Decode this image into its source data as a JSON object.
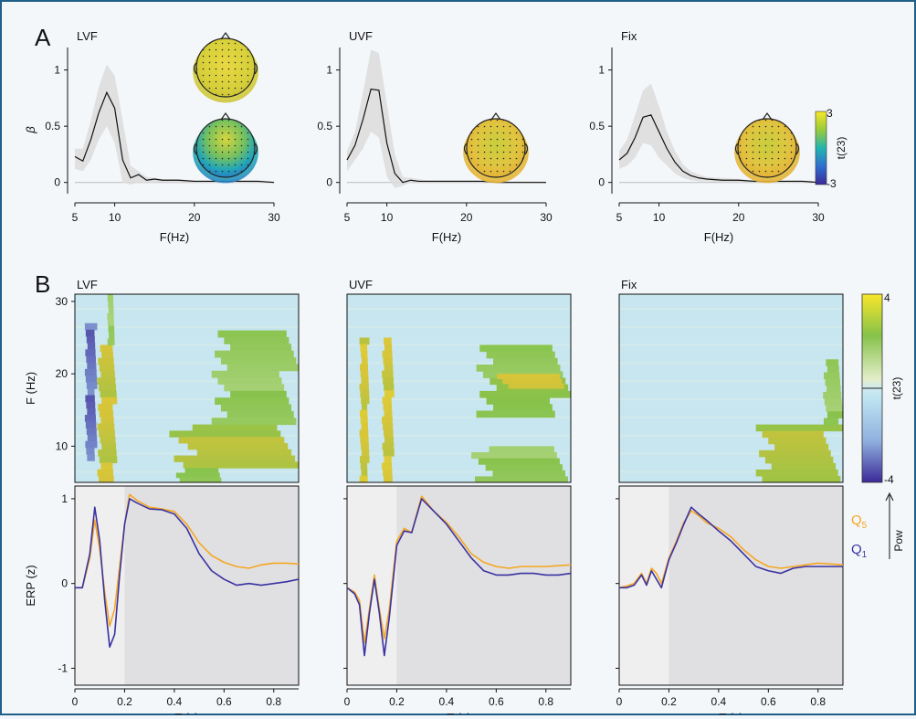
{
  "panel_labels": [
    "A",
    "B"
  ],
  "colors": {
    "q5": "#f5a623",
    "q1": "#3a32a0",
    "shade_line": "#dcdcdc",
    "bg_light": "#efeff0",
    "bg_dark": "#e0e0e2",
    "heat_bg": "#c8e6ef"
  },
  "colorbar_a": {
    "max": "3",
    "min": "-3",
    "label": "t(23)"
  },
  "colorbar_b": {
    "max": "4",
    "min": "-4",
    "label": "t(23)"
  },
  "legend_b": {
    "q5": "Q",
    "q5_sub": "5",
    "q1": "Q",
    "q1_sub": "1",
    "pow": "Pow"
  },
  "chart_data": [
    {
      "type": "line",
      "title": "LVF",
      "xlabel": "F(Hz)",
      "ylabel": "β",
      "xlim": [
        5,
        30
      ],
      "ylim": [
        -0.1,
        1.2
      ],
      "xticks": [
        "5",
        "10",
        "20",
        "30"
      ],
      "yticks": [
        "0",
        "0.5",
        "1"
      ],
      "x": [
        5,
        6,
        7,
        8,
        9,
        10,
        11,
        12,
        13,
        14,
        15,
        16,
        18,
        20,
        22,
        24,
        26,
        28,
        30
      ],
      "series": [
        {
          "values": [
            0.23,
            0.19,
            0.38,
            0.62,
            0.8,
            0.66,
            0.2,
            0.04,
            0.07,
            0.02,
            0.03,
            0.02,
            0.02,
            0.01,
            0.01,
            0.01,
            0.01,
            0.01,
            0.0
          ]
        }
      ],
      "band_upper": [
        0.3,
        0.3,
        0.55,
        0.85,
        1.05,
        0.95,
        0.55,
        0.15,
        0.1,
        0.05,
        0.04,
        0.03,
        0.03,
        0.02,
        0.02,
        0.02,
        0.02,
        0.02,
        0.01
      ],
      "band_lower": [
        0.12,
        0.1,
        0.2,
        0.38,
        0.5,
        0.35,
        0.0,
        -0.02,
        0.0,
        -0.01,
        0.0,
        0.0,
        0.0,
        0.0,
        0.0,
        0.0,
        0.0,
        0.0,
        -0.01
      ]
    },
    {
      "type": "line",
      "title": "UVF",
      "xlabel": "F(Hz)",
      "ylabel": "",
      "xlim": [
        5,
        30
      ],
      "ylim": [
        -0.1,
        1.2
      ],
      "xticks": [
        "5",
        "10",
        "20",
        "30"
      ],
      "yticks": [
        "0",
        "0.5",
        "1"
      ],
      "x": [
        5,
        6,
        7,
        8,
        9,
        10,
        11,
        12,
        13,
        14,
        15,
        16,
        18,
        20,
        22,
        24,
        26,
        28,
        30
      ],
      "series": [
        {
          "values": [
            0.2,
            0.33,
            0.56,
            0.83,
            0.82,
            0.35,
            0.08,
            0.0,
            0.02,
            0.01,
            0.01,
            0.01,
            0.01,
            0.01,
            0.01,
            0.0,
            0.0,
            0.0,
            0.0
          ]
        }
      ],
      "band_upper": [
        0.28,
        0.45,
        0.8,
        1.18,
        1.15,
        0.7,
        0.25,
        0.05,
        0.04,
        0.03,
        0.02,
        0.02,
        0.02,
        0.02,
        0.02,
        0.01,
        0.01,
        0.01,
        0.01
      ],
      "band_lower": [
        0.1,
        0.2,
        0.3,
        0.45,
        0.4,
        0.05,
        -0.05,
        -0.03,
        0.0,
        0.0,
        0.0,
        0.0,
        0.0,
        0.0,
        0.0,
        0.0,
        0.0,
        0.0,
        -0.01
      ]
    },
    {
      "type": "line",
      "title": "Fix",
      "xlabel": "F(Hz)",
      "ylabel": "",
      "xlim": [
        5,
        30
      ],
      "ylim": [
        -0.1,
        1.2
      ],
      "xticks": [
        "5",
        "10",
        "20",
        "30"
      ],
      "yticks": [
        "0",
        "0.5",
        "1"
      ],
      "x": [
        5,
        6,
        7,
        8,
        9,
        10,
        11,
        12,
        13,
        14,
        15,
        16,
        18,
        20,
        22,
        24,
        26,
        28,
        30
      ],
      "series": [
        {
          "values": [
            0.2,
            0.26,
            0.4,
            0.58,
            0.6,
            0.45,
            0.3,
            0.18,
            0.1,
            0.06,
            0.04,
            0.03,
            0.02,
            0.02,
            0.01,
            0.01,
            0.01,
            0.01,
            0.0
          ]
        }
      ],
      "band_upper": [
        0.28,
        0.38,
        0.6,
        0.82,
        0.88,
        0.68,
        0.45,
        0.28,
        0.16,
        0.1,
        0.07,
        0.05,
        0.04,
        0.03,
        0.02,
        0.02,
        0.02,
        0.02,
        0.01
      ],
      "band_lower": [
        0.12,
        0.15,
        0.22,
        0.35,
        0.33,
        0.22,
        0.15,
        0.08,
        0.04,
        0.02,
        0.01,
        0.01,
        0.0,
        0.0,
        0.0,
        0.0,
        0.0,
        0.0,
        -0.01
      ]
    },
    {
      "type": "heatmap",
      "title": "LVF",
      "xlabel": "",
      "ylabel": "F (Hz)",
      "xlim": [
        0,
        0.9
      ],
      "ylim": [
        5,
        31
      ],
      "yticks": [
        "10",
        "20",
        "30"
      ],
      "clim": [
        -4,
        4
      ],
      "clusters": [
        {
          "t0": 0.04,
          "t1": 0.09,
          "f0": 8,
          "f1": 27,
          "t": -3.5
        },
        {
          "t0": 0.09,
          "t1": 0.17,
          "f0": 5,
          "f1": 24,
          "t": 2.8
        },
        {
          "t0": 0.13,
          "t1": 0.16,
          "f0": 24,
          "f1": 31,
          "t": 1.5
        },
        {
          "t0": 0.38,
          "t1": 0.9,
          "f0": 7,
          "f1": 13,
          "t": 2.4
        },
        {
          "t0": 0.55,
          "t1": 0.9,
          "f0": 13,
          "f1": 26,
          "t": 1.6
        },
        {
          "t0": 0.4,
          "t1": 0.6,
          "f0": 5,
          "f1": 7,
          "t": 1.8
        }
      ]
    },
    {
      "type": "heatmap",
      "title": "UVF",
      "xlabel": "",
      "ylabel": "",
      "xlim": [
        0,
        0.9
      ],
      "ylim": [
        5,
        31
      ],
      "clim": [
        -4,
        4
      ],
      "clusters": [
        {
          "t0": 0.05,
          "t1": 0.09,
          "f0": 5,
          "f1": 25,
          "t": 3.0
        },
        {
          "t0": 0.14,
          "t1": 0.19,
          "f0": 5,
          "f1": 25,
          "t": 3.0
        },
        {
          "t0": 0.52,
          "t1": 0.9,
          "f0": 14,
          "f1": 24,
          "t": 1.8
        },
        {
          "t0": 0.5,
          "t1": 0.9,
          "f0": 5,
          "f1": 10,
          "t": 1.6
        },
        {
          "t0": 0.58,
          "t1": 0.9,
          "f0": 18,
          "f1": 20,
          "t": 2.8
        }
      ]
    },
    {
      "type": "heatmap",
      "title": "Fix",
      "xlabel": "",
      "ylabel": "",
      "xlim": [
        0,
        0.9
      ],
      "ylim": [
        5,
        31
      ],
      "clim": [
        -4,
        4
      ],
      "clusters": [
        {
          "t0": 0.55,
          "t1": 0.9,
          "f0": 5,
          "f1": 13,
          "t": 2.4
        },
        {
          "t0": 0.82,
          "t1": 0.9,
          "f0": 13,
          "f1": 22,
          "t": 1.6
        }
      ]
    },
    {
      "type": "line",
      "title": "",
      "xlabel": "T (s)",
      "ylabel": "ERP (z)",
      "xlim": [
        0,
        0.9
      ],
      "ylim": [
        -1.2,
        1.15
      ],
      "xticks": [
        "0",
        "0.2",
        "0.4",
        "0.6",
        "0.8"
      ],
      "yticks": [
        "-1",
        "0",
        "1"
      ],
      "x": [
        0,
        0.03,
        0.06,
        0.08,
        0.1,
        0.12,
        0.14,
        0.16,
        0.18,
        0.2,
        0.22,
        0.25,
        0.3,
        0.35,
        0.4,
        0.45,
        0.5,
        0.55,
        0.6,
        0.65,
        0.7,
        0.75,
        0.8,
        0.85,
        0.9
      ],
      "series": [
        {
          "name": "Q5",
          "values": [
            -0.05,
            -0.05,
            0.3,
            0.75,
            0.4,
            -0.1,
            -0.5,
            -0.3,
            0.2,
            0.7,
            1.05,
            0.98,
            0.9,
            0.88,
            0.85,
            0.7,
            0.48,
            0.33,
            0.25,
            0.2,
            0.18,
            0.22,
            0.24,
            0.24,
            0.23
          ]
        },
        {
          "name": "Q1",
          "values": [
            -0.05,
            -0.05,
            0.35,
            0.9,
            0.5,
            -0.2,
            -0.75,
            -0.6,
            0.1,
            0.7,
            1.0,
            0.95,
            0.88,
            0.87,
            0.82,
            0.65,
            0.35,
            0.15,
            0.05,
            -0.02,
            0.0,
            -0.02,
            0.0,
            0.02,
            0.05
          ]
        }
      ]
    },
    {
      "type": "line",
      "title": "",
      "xlabel": "T (s)",
      "ylabel": "",
      "xlim": [
        0,
        0.9
      ],
      "ylim": [
        -1.2,
        1.15
      ],
      "xticks": [
        "0",
        "0.2",
        "0.4",
        "0.6",
        "0.8"
      ],
      "yticks": [
        "-1",
        "0",
        "1"
      ],
      "x": [
        0,
        0.03,
        0.05,
        0.07,
        0.09,
        0.11,
        0.13,
        0.15,
        0.17,
        0.2,
        0.23,
        0.26,
        0.3,
        0.35,
        0.4,
        0.45,
        0.5,
        0.55,
        0.6,
        0.65,
        0.7,
        0.75,
        0.8,
        0.85,
        0.9
      ],
      "series": [
        {
          "name": "Q5",
          "values": [
            -0.05,
            -0.1,
            -0.2,
            -0.7,
            -0.3,
            0.1,
            -0.3,
            -0.65,
            -0.3,
            0.5,
            0.65,
            0.6,
            1.03,
            0.85,
            0.72,
            0.55,
            0.35,
            0.25,
            0.2,
            0.18,
            0.2,
            0.2,
            0.2,
            0.21,
            0.22
          ]
        },
        {
          "name": "Q1",
          "values": [
            -0.05,
            -0.12,
            -0.25,
            -0.85,
            -0.35,
            0.05,
            -0.35,
            -0.85,
            -0.4,
            0.45,
            0.62,
            0.6,
            1.0,
            0.85,
            0.7,
            0.5,
            0.3,
            0.15,
            0.1,
            0.1,
            0.12,
            0.12,
            0.1,
            0.1,
            0.12
          ]
        }
      ]
    },
    {
      "type": "line",
      "title": "",
      "xlabel": "T (s)",
      "ylabel": "",
      "xlim": [
        0,
        0.9
      ],
      "ylim": [
        -1.2,
        1.15
      ],
      "xticks": [
        "0",
        "0.2",
        "0.4",
        "0.6",
        "0.8"
      ],
      "yticks": [
        "-1",
        "0",
        "1"
      ],
      "x": [
        0,
        0.03,
        0.06,
        0.09,
        0.11,
        0.13,
        0.15,
        0.17,
        0.2,
        0.23,
        0.26,
        0.29,
        0.32,
        0.35,
        0.4,
        0.45,
        0.5,
        0.55,
        0.6,
        0.65,
        0.7,
        0.75,
        0.8,
        0.85,
        0.9
      ],
      "series": [
        {
          "name": "Q5",
          "values": [
            -0.05,
            -0.03,
            0.0,
            0.12,
            0.0,
            0.18,
            0.12,
            0.0,
            0.3,
            0.5,
            0.72,
            0.86,
            0.8,
            0.72,
            0.65,
            0.55,
            0.4,
            0.28,
            0.2,
            0.18,
            0.2,
            0.22,
            0.24,
            0.23,
            0.22
          ]
        },
        {
          "name": "Q1",
          "values": [
            -0.05,
            -0.05,
            -0.02,
            0.1,
            -0.02,
            0.15,
            0.05,
            -0.05,
            0.28,
            0.48,
            0.7,
            0.9,
            0.82,
            0.75,
            0.62,
            0.5,
            0.35,
            0.2,
            0.15,
            0.12,
            0.18,
            0.2,
            0.2,
            0.2,
            0.2
          ]
        }
      ]
    }
  ]
}
